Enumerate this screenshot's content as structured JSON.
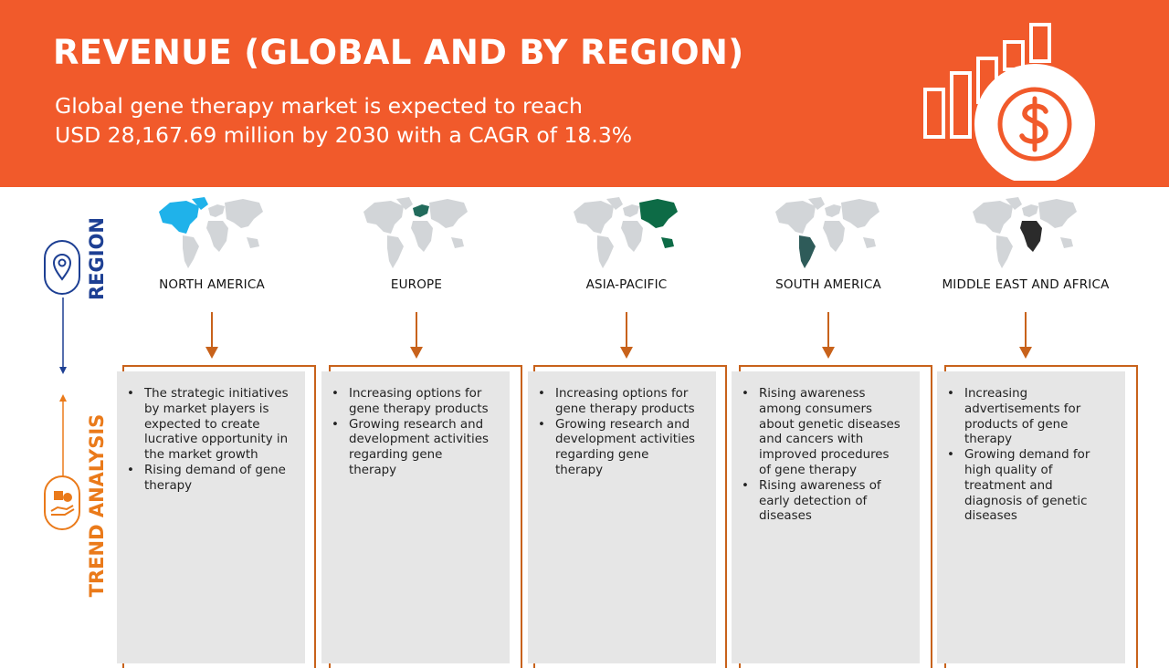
{
  "header": {
    "title": "REVENUE (GLOBAL AND BY REGION)",
    "subtitle_line1": "Global gene therapy market is expected to reach",
    "subtitle_line2": "USD 28,167.69 million by 2030 with a CAGR of 18.3%",
    "icon": "revenue-bars-dollar-icon"
  },
  "sidebar": {
    "region_label": "REGION",
    "trend_label": "TREND ANALYSIS",
    "region_icon": "location-pin-icon",
    "trend_icon": "hand-medicine-icon"
  },
  "colors": {
    "header_bg": "#f15a2b",
    "region_blue": "#1d3f93",
    "trend_orange": "#ea7a1a",
    "map_gray": "#d2d5d8",
    "box_gray": "#e6e6e6"
  },
  "regions": [
    {
      "name": "NORTH AMERICA",
      "highlight_color": "#1fb2ea",
      "trends": [
        "The strategic initiatives by market players is expected to create lucrative opportunity in the market growth",
        "Rising demand of gene therapy"
      ]
    },
    {
      "name": "EUROPE",
      "highlight_color": "#226b5c",
      "trends": [
        "Increasing options for gene therapy products",
        "Growing research and development activities regarding gene therapy"
      ]
    },
    {
      "name": "ASIA-PACIFIC",
      "highlight_color": "#0d6b46",
      "trends": [
        "Increasing options for gene therapy products",
        "Growing research and development activities regarding gene therapy"
      ]
    },
    {
      "name": "SOUTH AMERICA",
      "highlight_color": "#2e5b59",
      "trends": [
        "Rising awareness among consumers about genetic diseases and cancers with improved procedures of gene therapy",
        "Rising awareness of early detection of diseases"
      ]
    },
    {
      "name": "MIDDLE EAST AND AFRICA",
      "highlight_color": "#2b2b2b",
      "trends": [
        "Increasing advertisements for products of gene therapy",
        "Growing demand for high quality of treatment and diagnosis of genetic diseases"
      ]
    }
  ]
}
